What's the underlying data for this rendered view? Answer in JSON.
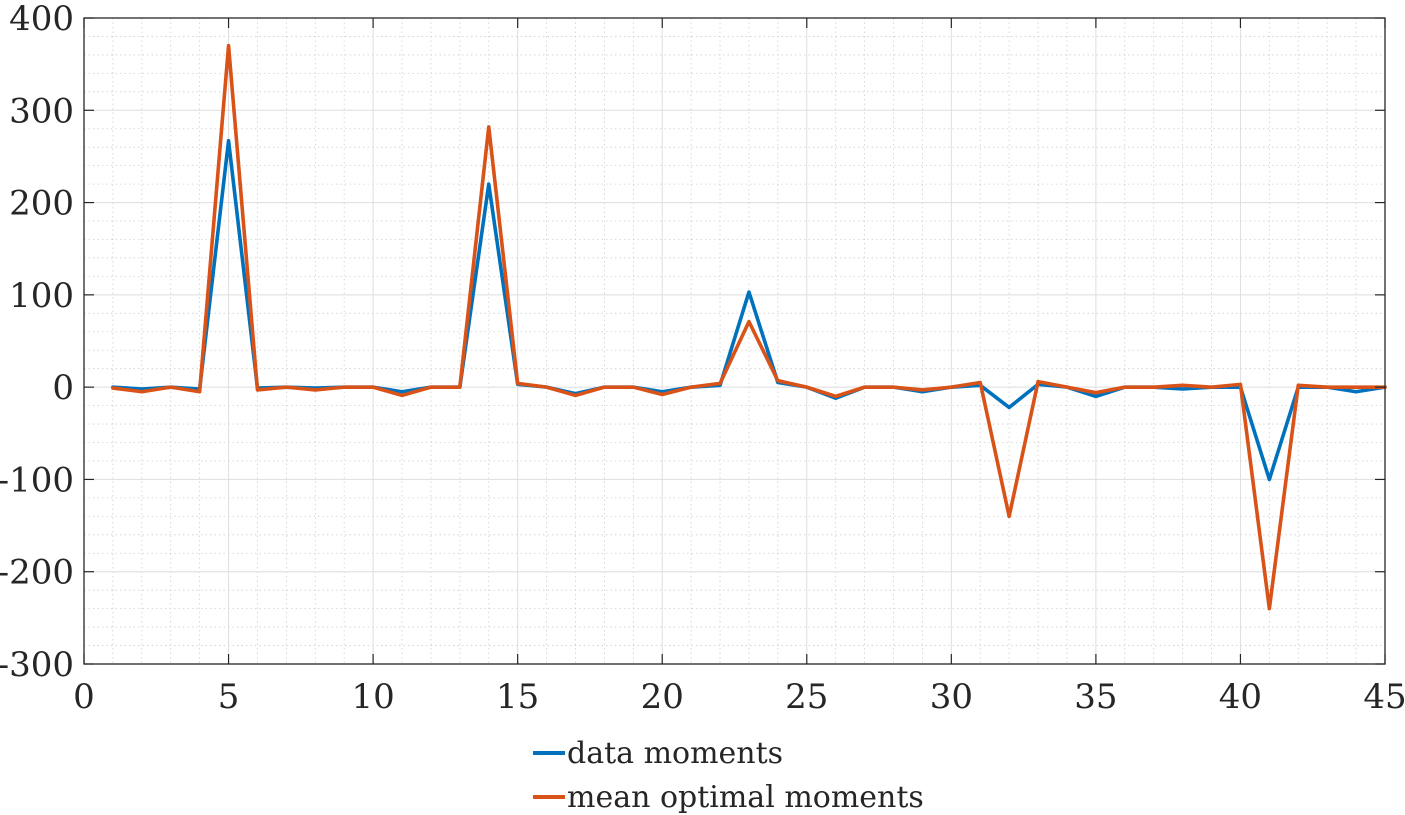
{
  "chart_data": {
    "type": "line",
    "title": "",
    "xlabel": "",
    "ylabel": "",
    "xlim": [
      0,
      45
    ],
    "ylim": [
      -300,
      400
    ],
    "xticks": [
      0,
      5,
      10,
      15,
      20,
      25,
      30,
      35,
      40,
      45
    ],
    "yticks": [
      -300,
      -200,
      -100,
      0,
      100,
      200,
      300,
      400
    ],
    "grid": true,
    "minor_grid": true,
    "legend_position": "bottom",
    "x": [
      1,
      2,
      3,
      4,
      5,
      6,
      7,
      8,
      9,
      10,
      11,
      12,
      13,
      14,
      15,
      16,
      17,
      18,
      19,
      20,
      21,
      22,
      23,
      24,
      25,
      26,
      27,
      28,
      29,
      30,
      31,
      32,
      33,
      34,
      35,
      36,
      37,
      38,
      39,
      40,
      41,
      42,
      43,
      44,
      45
    ],
    "series": [
      {
        "name": "data moments",
        "color": "#0072BD",
        "values": [
          0,
          -2,
          0,
          -2,
          267,
          -1,
          0,
          -1,
          0,
          0,
          -5,
          0,
          0,
          220,
          3,
          0,
          -7,
          0,
          0,
          -5,
          0,
          2,
          103,
          5,
          0,
          -12,
          0,
          0,
          -5,
          0,
          2,
          -22,
          3,
          0,
          -10,
          0,
          0,
          -2,
          0,
          0,
          -100,
          0,
          0,
          -5,
          0
        ]
      },
      {
        "name": "mean optimal moments",
        "color": "#D95319",
        "values": [
          -1,
          -5,
          0,
          -5,
          370,
          -3,
          0,
          -3,
          0,
          0,
          -9,
          0,
          0,
          282,
          4,
          0,
          -9,
          0,
          0,
          -8,
          0,
          4,
          71,
          7,
          0,
          -10,
          0,
          0,
          -3,
          0,
          5,
          -140,
          6,
          0,
          -6,
          0,
          0,
          2,
          0,
          3,
          -240,
          2,
          0,
          0,
          0
        ]
      }
    ]
  }
}
